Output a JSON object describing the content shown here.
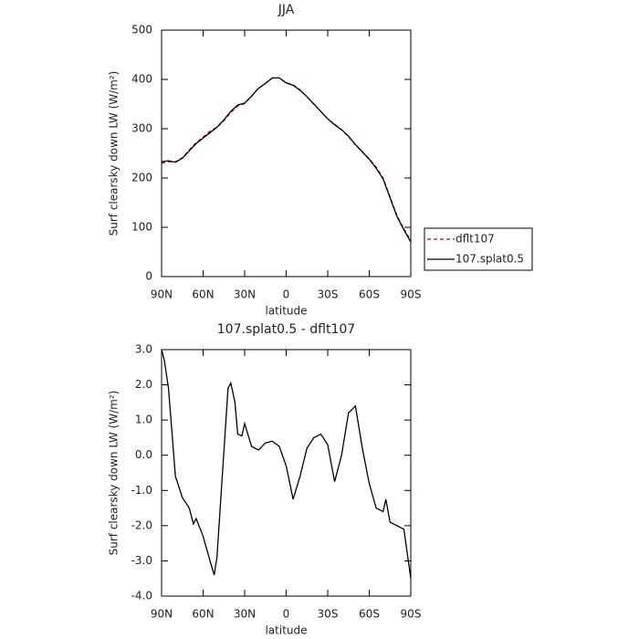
{
  "chart_data": [
    {
      "type": "line",
      "title": "JJA",
      "xlabel": "latitude",
      "ylabel": "Surf clearsky down LW (W/m²)",
      "x": [
        90,
        85,
        80,
        75,
        70,
        65,
        60,
        55,
        50,
        45,
        40,
        35,
        30,
        25,
        20,
        15,
        10,
        5,
        0,
        -5,
        -10,
        -15,
        -20,
        -25,
        -30,
        -35,
        -40,
        -45,
        -50,
        -55,
        -60,
        -65,
        -70,
        -75,
        -80,
        -85,
        -90
      ],
      "series": [
        {
          "name": "dflt107",
          "color": "#cc0000",
          "linestyle": "dashed",
          "values": [
            230,
            233,
            233,
            241,
            257,
            272,
            283,
            295,
            303,
            316,
            333,
            346,
            351,
            366,
            382,
            392,
            403,
            403,
            393,
            389,
            379,
            365,
            350,
            335,
            320,
            309,
            298,
            284,
            267,
            253,
            239,
            222,
            200,
            162,
            124,
            97,
            73
          ]
        },
        {
          "name": "107.splat0.5",
          "color": "#000000",
          "linestyle": "solid",
          "values": [
            233,
            235,
            232,
            240,
            255,
            270,
            281,
            292,
            303,
            318,
            335,
            348,
            352,
            366,
            382,
            392,
            403,
            403,
            393,
            388,
            378,
            365,
            350,
            335,
            320,
            308,
            298,
            285,
            268,
            253,
            238,
            220,
            198,
            160,
            122,
            95,
            70
          ]
        }
      ],
      "xlim": [
        90,
        -90
      ],
      "xticks": [
        {
          "value": 90,
          "label": "90N"
        },
        {
          "value": 60,
          "label": "60N"
        },
        {
          "value": 30,
          "label": "30N"
        },
        0,
        {
          "value": -30,
          "label": "30S"
        },
        {
          "value": -60,
          "label": "60S"
        },
        {
          "value": -90,
          "label": "90S"
        }
      ],
      "ylim": [
        0,
        500
      ],
      "yticks": [
        0,
        100,
        200,
        300,
        400,
        500
      ],
      "legend": "right"
    },
    {
      "type": "line",
      "title": "107.splat0.5 - dflt107",
      "xlabel": "latitude",
      "ylabel": "Surf clearsky down LW (W/m²)",
      "x": [
        90,
        88,
        85,
        80,
        75,
        70,
        67,
        65,
        60,
        55,
        52,
        50,
        45,
        42,
        40,
        37,
        35,
        32,
        30,
        25,
        20,
        15,
        10,
        5,
        0,
        -5,
        -10,
        -15,
        -20,
        -25,
        -30,
        -35,
        -40,
        -45,
        -50,
        -55,
        -60,
        -65,
        -70,
        -72,
        -75,
        -80,
        -85,
        -90
      ],
      "series": [
        {
          "name": "107.splat0.5 - dflt107",
          "color": "#000000",
          "linestyle": "solid",
          "values": [
            3.0,
            2.7,
            1.9,
            -0.6,
            -1.2,
            -1.5,
            -1.95,
            -1.8,
            -2.3,
            -3.0,
            -3.4,
            -2.9,
            0.1,
            1.9,
            2.05,
            1.5,
            0.6,
            0.55,
            0.9,
            0.25,
            0.15,
            0.35,
            0.4,
            0.25,
            -0.3,
            -1.25,
            -0.6,
            0.2,
            0.5,
            0.6,
            0.3,
            -0.75,
            0.0,
            1.2,
            1.4,
            0.2,
            -0.8,
            -1.5,
            -1.6,
            -1.25,
            -1.9,
            -2.0,
            -2.1,
            -3.5
          ]
        }
      ],
      "xlim": [
        90,
        -90
      ],
      "xticks": [
        {
          "value": 90,
          "label": "90N"
        },
        {
          "value": 60,
          "label": "60N"
        },
        {
          "value": 30,
          "label": "30N"
        },
        0,
        {
          "value": -30,
          "label": "30S"
        },
        {
          "value": -60,
          "label": "60S"
        },
        {
          "value": -90,
          "label": "90S"
        }
      ],
      "ylim": [
        -4,
        3
      ],
      "yticks": [
        {
          "value": -4,
          "label": "-4.0"
        },
        {
          "value": -3,
          "label": "-3.0"
        },
        {
          "value": -2,
          "label": "-2.0"
        },
        {
          "value": -1,
          "label": "-1.0"
        },
        {
          "value": 0,
          "label": "0.0"
        },
        {
          "value": 1,
          "label": "1.0"
        },
        {
          "value": 2,
          "label": "2.0"
        },
        {
          "value": 3,
          "label": "3.0"
        }
      ]
    }
  ]
}
